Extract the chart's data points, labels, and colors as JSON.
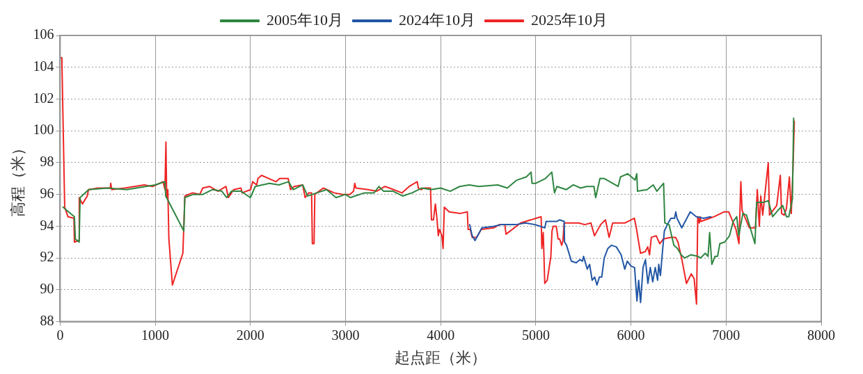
{
  "chart_data": {
    "type": "line",
    "xlabel": "起点距（米）",
    "ylabel": "高程（米）",
    "xlim": [
      0,
      8000
    ],
    "xticks": [
      0,
      1000,
      2000,
      3000,
      4000,
      5000,
      6000,
      7000,
      8000
    ],
    "ylim": [
      88,
      106
    ],
    "yticks": [
      88,
      90,
      92,
      94,
      96,
      98,
      100,
      102,
      104,
      106
    ],
    "grid": true,
    "legend": "top",
    "marker": "none",
    "line_style": "solid",
    "series": [
      {
        "name": "2005年10月",
        "color": "#2e8540",
        "x": [
          30,
          150,
          160,
          200,
          210,
          300,
          500,
          700,
          1000,
          1100,
          1110,
          1300,
          1310,
          1400,
          1500,
          1600,
          1700,
          1750,
          1800,
          1900,
          2000,
          2050,
          2200,
          2300,
          2400,
          2450,
          2550,
          2600,
          2700,
          2800,
          2900,
          3000,
          3050,
          3200,
          3300,
          3350,
          3400,
          3500,
          3600,
          3700,
          3800,
          3900,
          4000,
          4100,
          4200,
          4300,
          4400,
          4600,
          4700,
          4800,
          4900,
          4950,
          4960,
          5000,
          5100,
          5168,
          5196,
          5222,
          5318,
          5394,
          5471,
          5534,
          5611,
          5629,
          5674,
          5720,
          5865,
          5890,
          5967,
          6043,
          6061,
          6069,
          6170,
          6234,
          6272,
          6343,
          6356,
          6400,
          6451,
          6489,
          6527,
          6565,
          6629,
          6705,
          6731,
          6782,
          6810,
          6827,
          6850,
          6883,
          6910,
          6934,
          6985,
          7036,
          7074,
          7112,
          7133,
          7176,
          7214,
          7303,
          7321,
          7392,
          7443,
          7489,
          7545,
          7595,
          7634,
          7659,
          7697,
          7710
        ],
        "values": [
          95.2,
          94.6,
          93.2,
          93.0,
          95.8,
          96.3,
          96.4,
          96.3,
          96.6,
          96.8,
          95.9,
          93.7,
          95.8,
          96.0,
          96.0,
          96.3,
          96.2,
          95.8,
          96.2,
          96.2,
          95.8,
          96.5,
          96.7,
          96.6,
          96.8,
          96.3,
          96.6,
          95.9,
          96.1,
          96.3,
          95.8,
          96.0,
          95.8,
          96.1,
          96.1,
          96.5,
          96.2,
          96.2,
          95.9,
          96.1,
          96.4,
          96.3,
          96.4,
          96.2,
          96.5,
          96.6,
          96.5,
          96.6,
          96.4,
          96.9,
          97.1,
          97.4,
          96.7,
          96.7,
          97.0,
          97.4,
          96.1,
          96.5,
          96.3,
          96.6,
          96.4,
          96.5,
          96.5,
          95.8,
          97.0,
          97.0,
          96.5,
          97.1,
          97.3,
          96.9,
          97.3,
          96.2,
          96.3,
          96.6,
          96.2,
          96.7,
          94.2,
          94.1,
          92.8,
          92.6,
          92.2,
          92.0,
          92.2,
          92.1,
          92.0,
          92.3,
          92.1,
          93.6,
          91.6,
          92.1,
          92.1,
          92.9,
          93.0,
          93.4,
          94.3,
          94.6,
          93.4,
          94.8,
          94.7,
          92.9,
          95.5,
          95.5,
          95.6,
          94.6,
          95.0,
          95.3,
          94.6,
          94.6,
          95.7,
          100.8
        ]
      },
      {
        "name": "2024年10月",
        "color": "#2156a5",
        "x": [
          4305,
          4331,
          4361,
          4433,
          4560,
          4636,
          4789,
          4891,
          4993,
          5095,
          5108,
          5222,
          5248,
          5298,
          5302,
          5323,
          5374,
          5425,
          5463,
          5490,
          5502,
          5541,
          5565,
          5592,
          5618,
          5643,
          5668,
          5693,
          5719,
          5757,
          5795,
          5846,
          5897,
          5935,
          5961,
          5999,
          6038,
          6063,
          6081,
          6101,
          6127,
          6152,
          6178,
          6203,
          6229,
          6255,
          6280,
          6292,
          6310,
          6331,
          6351,
          6382,
          6420,
          6458,
          6471,
          6484,
          6534,
          6623,
          6687,
          6763,
          6840
        ],
        "values": [
          94.1,
          93.4,
          93.1,
          93.9,
          94.0,
          94.1,
          94.1,
          94.2,
          94.1,
          93.9,
          94.3,
          94.3,
          94.4,
          94.3,
          93.0,
          92.8,
          91.8,
          91.7,
          91.9,
          91.8,
          92.1,
          91.3,
          91.6,
          90.6,
          90.8,
          90.3,
          90.8,
          90.8,
          92.0,
          92.6,
          92.8,
          92.7,
          92.2,
          91.3,
          91.8,
          91.5,
          91.4,
          89.3,
          90.6,
          89.2,
          91.4,
          91.9,
          90.4,
          91.4,
          90.5,
          91.4,
          90.6,
          91.6,
          90.9,
          92.4,
          93.7,
          94.1,
          94.5,
          94.5,
          94.9,
          94.5,
          93.9,
          94.9,
          94.6,
          94.5,
          94.6
        ]
      },
      {
        "name": "2025年10月",
        "color": "#ee2424",
        "x": [
          0,
          18,
          48,
          82,
          145,
          150,
          196,
          201,
          234,
          285,
          298,
          399,
          476,
          527,
          532,
          542,
          679,
          883,
          972,
          1082,
          1102,
          1112,
          1120,
          1132,
          1143,
          1180,
          1290,
          1311,
          1392,
          1468,
          1499,
          1570,
          1659,
          1743,
          1768,
          1824,
          1901,
          1913,
          2002,
          2023,
          2066,
          2079,
          2117,
          2231,
          2270,
          2308,
          2397,
          2422,
          2460,
          2550,
          2575,
          2613,
          2643,
          2651,
          2669,
          2677,
          2766,
          2880,
          2969,
          3046,
          3084,
          3097,
          3109,
          3237,
          3326,
          3415,
          3504,
          3593,
          3669,
          3753,
          3766,
          3796,
          3822,
          3893,
          3903,
          3924,
          3944,
          3962,
          3975,
          3987,
          4013,
          4025,
          4038,
          4089,
          4203,
          4280,
          4288,
          4311,
          4331,
          4377,
          4427,
          4560,
          4616,
          4674,
          4687,
          4840,
          5056,
          5063,
          5078,
          5094,
          5120,
          5158,
          5170,
          5183,
          5215,
          5234,
          5250,
          5272,
          5285,
          5298,
          5451,
          5514,
          5579,
          5617,
          5681,
          5732,
          5770,
          5808,
          5935,
          6036,
          6056,
          6100,
          6150,
          6176,
          6195,
          6214,
          6265,
          6303,
          6341,
          6418,
          6469,
          6494,
          6532,
          6583,
          6634,
          6664,
          6689,
          6702,
          6718,
          6726,
          6735,
          6875,
          6977,
          7028,
          7104,
          7135,
          7155,
          7168,
          7244,
          7308,
          7328,
          7349,
          7364,
          7385,
          7443,
          7456,
          7532,
          7570,
          7583,
          7610,
          7634,
          7665,
          7685,
          7705,
          7717
        ],
        "values": [
          104.6,
          104.6,
          95.2,
          94.6,
          94.5,
          93.0,
          93.1,
          95.8,
          95.4,
          95.9,
          96.3,
          96.4,
          96.4,
          96.4,
          96.7,
          96.3,
          96.4,
          96.6,
          96.5,
          96.8,
          96.3,
          99.3,
          95.8,
          96.3,
          93.2,
          90.3,
          92.3,
          95.9,
          96.1,
          96.0,
          96.4,
          96.5,
          96.2,
          96.5,
          95.8,
          96.3,
          96.4,
          96.1,
          96.3,
          96.8,
          96.6,
          97.0,
          97.2,
          96.9,
          96.8,
          97.0,
          97.0,
          96.3,
          96.5,
          96.6,
          95.8,
          96.1,
          96.1,
          92.9,
          92.9,
          96.0,
          96.4,
          96.1,
          96.0,
          96.0,
          96.2,
          96.7,
          96.4,
          96.3,
          96.2,
          96.5,
          96.3,
          96.1,
          96.5,
          96.8,
          96.4,
          96.3,
          96.4,
          96.4,
          94.4,
          94.4,
          95.4,
          94.4,
          93.4,
          93.8,
          93.4,
          92.6,
          95.2,
          94.9,
          94.8,
          94.9,
          93.8,
          93.8,
          93.3,
          93.3,
          93.8,
          93.9,
          94.1,
          94.1,
          93.5,
          94.2,
          94.6,
          92.6,
          93.6,
          90.4,
          90.6,
          92.1,
          93.7,
          94.0,
          94.0,
          93.2,
          93.2,
          92.8,
          93.1,
          94.2,
          94.2,
          94.1,
          94.2,
          93.4,
          94.1,
          94.4,
          93.3,
          94.2,
          94.2,
          94.5,
          93.9,
          92.3,
          92.4,
          92.7,
          92.2,
          93.3,
          93.4,
          92.9,
          93.2,
          93.3,
          93.3,
          93.0,
          92.0,
          90.4,
          91.0,
          90.7,
          89.1,
          94.6,
          94.2,
          94.6,
          94.3,
          94.6,
          94.9,
          94.9,
          93.8,
          92.9,
          96.8,
          95.0,
          93.9,
          93.9,
          96.3,
          94.0,
          95.9,
          94.7,
          98.0,
          94.7,
          95.3,
          97.2,
          94.8,
          94.7,
          95.1,
          97.1,
          94.8,
          98.0,
          100.6
        ]
      }
    ]
  }
}
